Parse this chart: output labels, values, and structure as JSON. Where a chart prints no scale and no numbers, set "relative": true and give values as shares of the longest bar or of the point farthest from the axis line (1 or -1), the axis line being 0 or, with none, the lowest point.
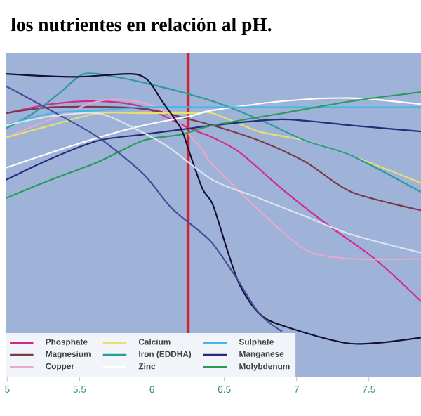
{
  "chart_data": {
    "type": "line",
    "title": "los nutrientes en relación al pH.",
    "relative": true,
    "xlim": [
      4.99,
      7.86
    ],
    "xticks": [
      5,
      5.5,
      6,
      6.5,
      7,
      7.5
    ],
    "legend": "bottom left",
    "ref_lines": [
      {
        "axis": "x",
        "value": 6.25,
        "color": "#d8202c"
      }
    ],
    "series": [
      {
        "name": "Phosphate",
        "color": "#d4288c",
        "x": [
          4.99,
          5.3,
          5.63,
          5.94,
          6.26,
          6.42,
          6.61,
          6.9,
          7.22,
          7.54,
          7.86
        ],
        "values": [
          0.87,
          0.9,
          0.91,
          0.89,
          0.82,
          0.79,
          0.74,
          0.62,
          0.5,
          0.39,
          0.25
        ]
      },
      {
        "name": "Magnesium",
        "color": "#7a3a4a",
        "x": [
          4.99,
          5.3,
          5.78,
          6.01,
          6.26,
          6.42,
          6.74,
          7.06,
          7.38,
          7.86
        ],
        "values": [
          0.87,
          0.89,
          0.89,
          0.88,
          0.85,
          0.83,
          0.78,
          0.71,
          0.61,
          0.55
        ]
      },
      {
        "name": "Copper",
        "color": "#e8a8cc",
        "x": [
          4.99,
          5.3,
          5.63,
          5.88,
          6.11,
          6.33,
          6.42,
          6.74,
          7.06,
          7.38,
          7.86
        ],
        "values": [
          0.79,
          0.85,
          0.91,
          0.91,
          0.87,
          0.76,
          0.7,
          0.55,
          0.42,
          0.39,
          0.39
        ]
      },
      {
        "name": "Calcium",
        "color": "#e8e070",
        "x": [
          4.99,
          5.3,
          5.63,
          5.94,
          6.26,
          6.42,
          6.74,
          7.06,
          7.38,
          7.86
        ],
        "values": [
          0.79,
          0.83,
          0.87,
          0.87,
          0.87,
          0.87,
          0.81,
          0.78,
          0.73,
          0.64
        ]
      },
      {
        "name": "Iron (EDDHA)",
        "color": "#2a9a9a",
        "x": [
          4.99,
          5.18,
          5.37,
          5.53,
          5.75,
          6.04,
          6.42,
          6.74,
          7.06,
          7.38,
          7.86
        ],
        "values": [
          0.82,
          0.87,
          0.94,
          1.0,
          0.99,
          0.96,
          0.91,
          0.85,
          0.78,
          0.73,
          0.61
        ]
      },
      {
        "name": "Zinc",
        "color": "#ffffff",
        "x": [
          4.99,
          5.3,
          5.63,
          5.94,
          6.26,
          6.42,
          6.9,
          7.38,
          7.86
        ],
        "values": [
          0.69,
          0.74,
          0.79,
          0.83,
          0.86,
          0.88,
          0.91,
          0.92,
          0.9
        ]
      },
      {
        "name": "Sulphate",
        "color": "#40b8e8",
        "x": [
          4.99,
          5.3,
          5.63,
          5.94,
          6.42,
          6.9,
          7.38,
          7.86
        ],
        "values": [
          0.83,
          0.87,
          0.88,
          0.89,
          0.89,
          0.89,
          0.89,
          0.89
        ]
      },
      {
        "name": "Manganese",
        "color": "#2a2a7a",
        "x": [
          4.99,
          5.3,
          5.63,
          5.94,
          6.26,
          6.42,
          6.9,
          7.38,
          7.86
        ],
        "values": [
          0.65,
          0.72,
          0.78,
          0.8,
          0.82,
          0.83,
          0.85,
          0.83,
          0.81
        ]
      },
      {
        "name": "Molybdenum",
        "color": "#2a9a5a",
        "x": [
          4.99,
          5.3,
          5.63,
          5.94,
          6.2,
          6.42,
          6.9,
          7.38,
          7.86
        ],
        "values": [
          0.59,
          0.65,
          0.71,
          0.78,
          0.8,
          0.83,
          0.87,
          0.91,
          0.94
        ]
      },
      {
        "color": "#111133",
        "x": [
          4.99,
          5.46,
          5.85,
          5.97,
          6.07,
          6.2,
          6.26,
          6.35,
          6.42,
          6.52,
          6.61,
          6.74,
          6.9,
          7.38,
          7.86
        ],
        "values": [
          1.0,
          0.99,
          1.0,
          0.98,
          0.91,
          0.82,
          0.74,
          0.62,
          0.57,
          0.42,
          0.3,
          0.21,
          0.17,
          0.11,
          0.13
        ]
      },
      {
        "color": "#4a4a9a",
        "x": [
          4.99,
          5.3,
          5.63,
          5.94,
          6.13,
          6.33,
          6.42,
          6.58,
          6.74,
          6.9
        ],
        "values": [
          0.96,
          0.88,
          0.79,
          0.67,
          0.56,
          0.48,
          0.44,
          0.33,
          0.21,
          0.15
        ]
      },
      {
        "color": "#dde4f0",
        "x": [
          4.99,
          5.3,
          5.63,
          5.88,
          6.11,
          6.42,
          6.74,
          7.06,
          7.38,
          7.86
        ],
        "values": [
          0.83,
          0.86,
          0.87,
          0.82,
          0.76,
          0.65,
          0.59,
          0.53,
          0.47,
          0.41
        ]
      }
    ]
  }
}
